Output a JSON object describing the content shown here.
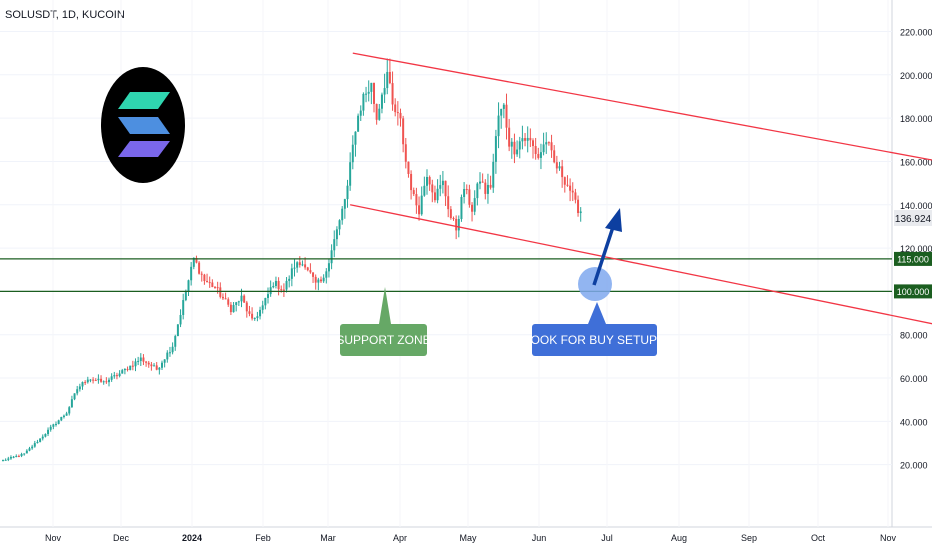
{
  "header": {
    "symbol_title": "SOLUSDT, 1D, KUCOIN"
  },
  "colors": {
    "up": "#26a69a",
    "down": "#ef5350",
    "channel": "#f23645",
    "level_line": "#1b5e20",
    "level_tag_bg": "#1b5e20",
    "price_tag_bg": "#e8eaee",
    "support_callout": "#66a866",
    "buy_callout": "#3f6fd8",
    "arrow": "#0d3fa0",
    "highlight_circle": "#7fa8ef",
    "logo_bg": "#000000",
    "logo_bar_top": "#2fd6b0",
    "logo_bar_mid": "#4d8fe0",
    "logo_bar_bottom": "#7a67ea"
  },
  "annotations": {
    "support_label": "SUPPORT ZONE",
    "buy_label": "LOOK FOR BUY SETUPS",
    "logo_icon": "solana-logo-icon"
  },
  "chart_data": {
    "type": "candlestick",
    "title": "SOLUSDT, 1D, KUCOIN",
    "ylim": [
      0,
      230
    ],
    "y_ticks": [
      "20.000",
      "40.000",
      "60.000",
      "80.000",
      "100.000",
      "120.000",
      "140.000",
      "160.000",
      "180.000",
      "200.000",
      "220.000"
    ],
    "x_ticks": [
      "Nov",
      "Dec",
      "2024",
      "Feb",
      "Mar",
      "Apr",
      "May",
      "Jun",
      "Jul",
      "Aug",
      "Sep",
      "Oct",
      "Nov"
    ],
    "last_price": "136.924",
    "horizontal_levels": [
      {
        "value": 115,
        "label": "115.000"
      },
      {
        "value": 100,
        "label": "100.000"
      }
    ],
    "channel_upper": [
      [
        132,
        210
      ],
      [
        420,
        145
      ]
    ],
    "channel_lower": [
      [
        131,
        140
      ],
      [
        407,
        71
      ]
    ],
    "anchors": [
      [
        0,
        22
      ],
      [
        8,
        25
      ],
      [
        14,
        32
      ],
      [
        18,
        37
      ],
      [
        24,
        44
      ],
      [
        28,
        55
      ],
      [
        32,
        60
      ],
      [
        38,
        58
      ],
      [
        44,
        62
      ],
      [
        52,
        69
      ],
      [
        58,
        64
      ],
      [
        64,
        75
      ],
      [
        68,
        95
      ],
      [
        72,
        115
      ],
      [
        76,
        105
      ],
      [
        80,
        102
      ],
      [
        84,
        95
      ],
      [
        86,
        92
      ],
      [
        90,
        97
      ],
      [
        94,
        86
      ],
      [
        98,
        93
      ],
      [
        102,
        104
      ],
      [
        106,
        101
      ],
      [
        110,
        112
      ],
      [
        114,
        113
      ],
      [
        118,
        103
      ],
      [
        121,
        105
      ],
      [
        124,
        120
      ],
      [
        127,
        132
      ],
      [
        130,
        148
      ],
      [
        133,
        176
      ],
      [
        136,
        190
      ],
      [
        139,
        195
      ],
      [
        141,
        180
      ],
      [
        143,
        192
      ],
      [
        145,
        201
      ],
      [
        147,
        185
      ],
      [
        150,
        178
      ],
      [
        152,
        160
      ],
      [
        155,
        143
      ],
      [
        157,
        138
      ],
      [
        160,
        155
      ],
      [
        163,
        144
      ],
      [
        166,
        150
      ],
      [
        169,
        134
      ],
      [
        171,
        129
      ],
      [
        174,
        148
      ],
      [
        177,
        138
      ],
      [
        180,
        152
      ],
      [
        182,
        146
      ],
      [
        184,
        149
      ],
      [
        187,
        181
      ],
      [
        189,
        185
      ],
      [
        191,
        169
      ],
      [
        193,
        166
      ],
      [
        196,
        171
      ],
      [
        199,
        169
      ],
      [
        202,
        162
      ],
      [
        205,
        170
      ],
      [
        208,
        159
      ],
      [
        211,
        154
      ],
      [
        214,
        147
      ],
      [
        216,
        140
      ],
      [
        218,
        136.9
      ]
    ]
  }
}
